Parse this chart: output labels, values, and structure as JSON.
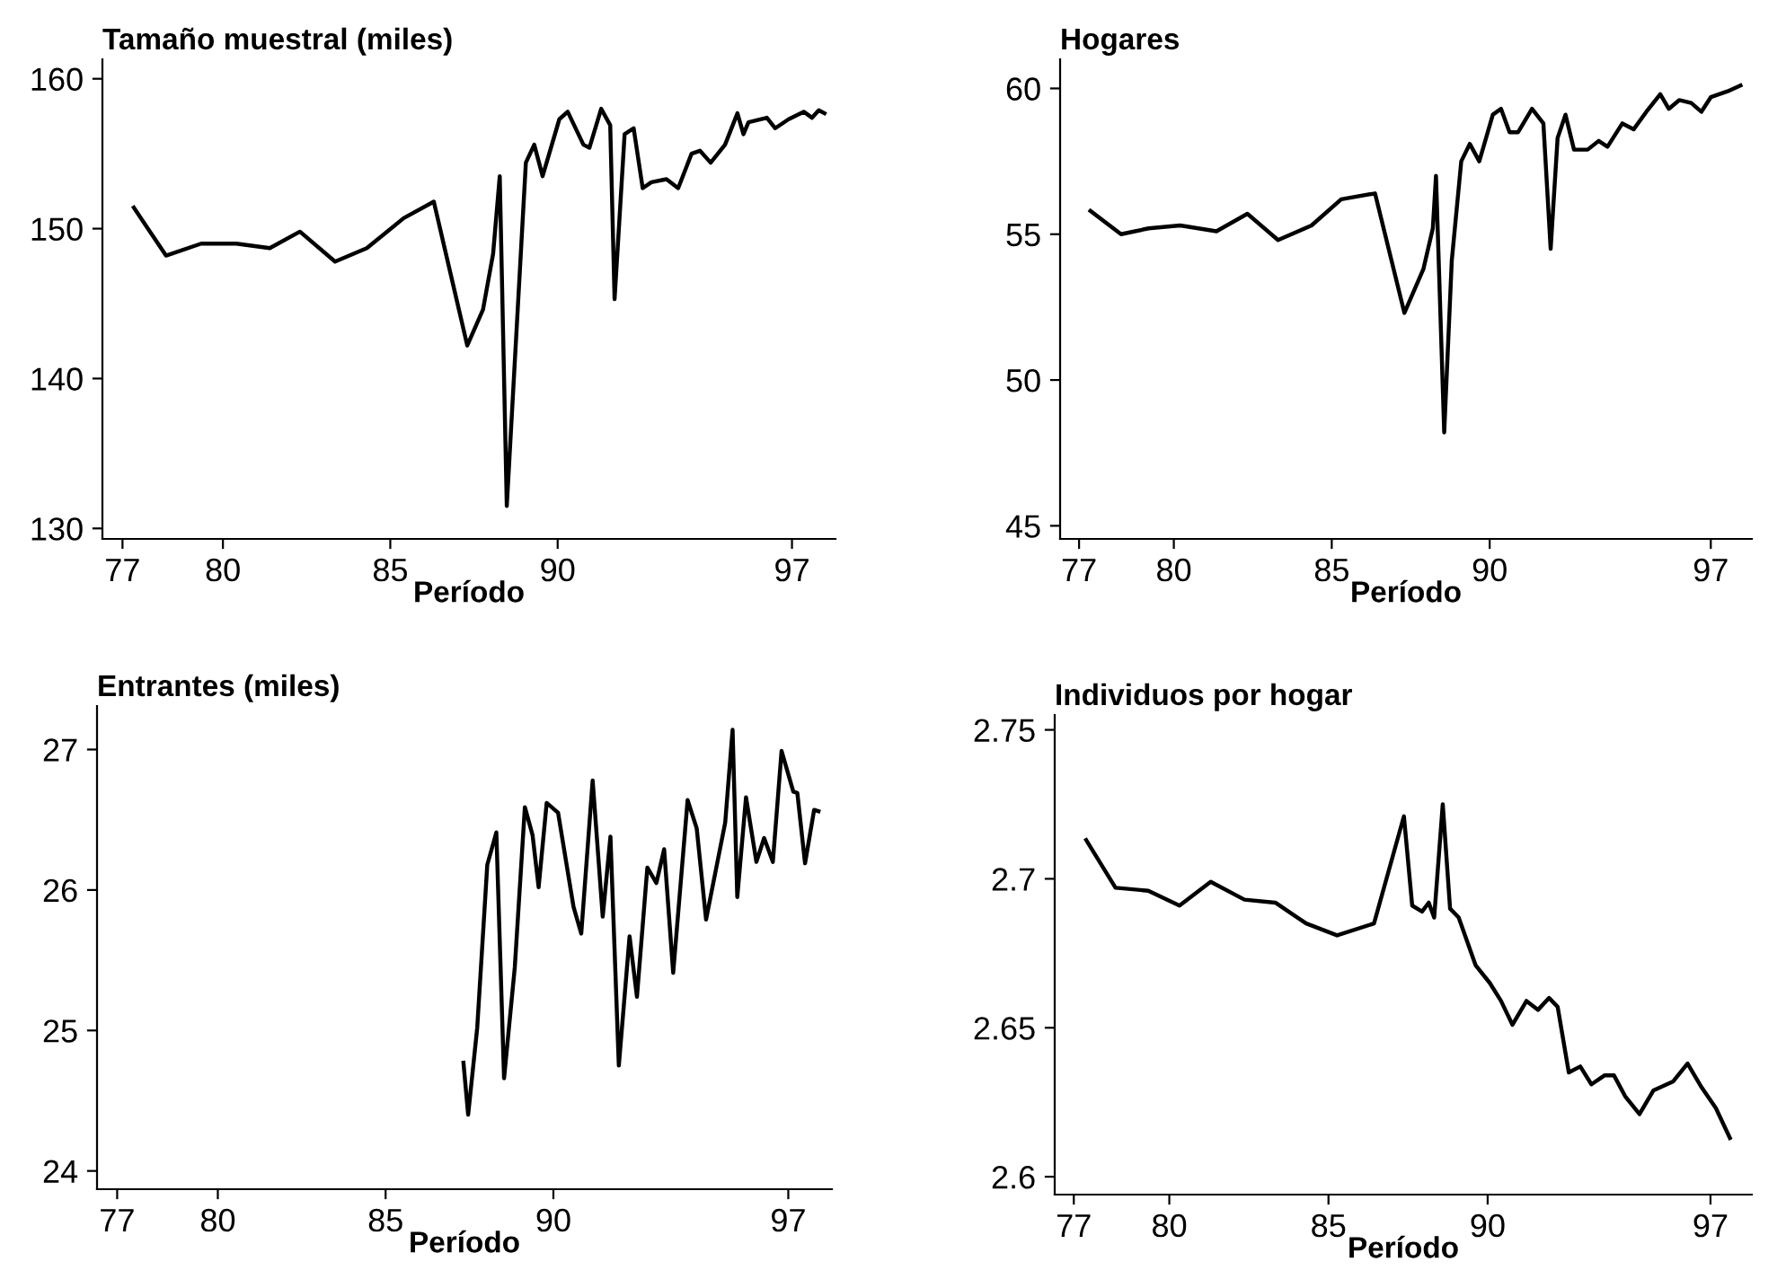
{
  "chart_data": [
    {
      "type": "line",
      "title": "Tamaño muestral (miles)",
      "xlabel": "Período",
      "color": "#000000",
      "xlim": [
        76.4,
        98.3
      ],
      "ylim": [
        129.3,
        161.3
      ],
      "xticks": [
        77,
        80,
        85,
        90,
        97
      ],
      "yticks": [
        130,
        140,
        150,
        160
      ],
      "x": [
        77.34,
        78.3,
        79.35,
        80.4,
        81.4,
        82.3,
        83.35,
        84.3,
        85.4,
        86.3,
        87.3,
        87.77,
        88.07,
        88.27,
        88.48,
        89.05,
        89.3,
        89.55,
        90.05,
        90.3,
        90.77,
        90.95,
        91.3,
        91.57,
        91.7,
        92.0,
        92.27,
        92.54,
        92.8,
        93.25,
        93.6,
        94.0,
        94.25,
        94.57,
        95.0,
        95.37,
        95.55,
        95.7,
        96.25,
        96.5,
        96.9,
        97.35,
        97.6,
        97.8,
        97.97
      ],
      "values": [
        151.4,
        148.2,
        149.0,
        149.0,
        148.7,
        149.8,
        147.8,
        148.7,
        150.7,
        151.8,
        142.2,
        144.6,
        148.3,
        153.5,
        131.5,
        154.4,
        155.6,
        153.5,
        157.3,
        157.8,
        155.6,
        155.4,
        158.0,
        156.9,
        145.3,
        156.3,
        156.7,
        152.7,
        153.1,
        153.3,
        152.7,
        155.0,
        155.2,
        154.4,
        155.6,
        157.7,
        156.3,
        157.1,
        157.4,
        156.7,
        157.3,
        157.8,
        157.4,
        157.9,
        157.7
      ]
    },
    {
      "type": "line",
      "title": "Hogares",
      "xlabel": "Período",
      "color": "#000000",
      "xlim": [
        76.4,
        98.3
      ],
      "ylim": [
        44.55,
        61.0
      ],
      "xticks": [
        77,
        80,
        85,
        90,
        97
      ],
      "yticks": [
        45,
        50,
        55,
        60
      ],
      "x": [
        77.36,
        78.33,
        79.2,
        80.2,
        81.35,
        82.33,
        83.3,
        84.36,
        85.3,
        86.37,
        87.3,
        87.9,
        88.2,
        88.3,
        88.56,
        88.8,
        89.1,
        89.37,
        89.67,
        90.1,
        90.36,
        90.63,
        90.9,
        91.34,
        91.7,
        91.93,
        92.15,
        92.4,
        92.67,
        93.1,
        93.45,
        93.73,
        94.2,
        94.56,
        94.96,
        95.4,
        95.67,
        96.0,
        96.38,
        96.7,
        97.0,
        97.53,
        97.94
      ],
      "values": [
        55.8,
        55.0,
        55.2,
        55.3,
        55.1,
        55.7,
        54.8,
        55.3,
        56.2,
        56.4,
        52.3,
        53.8,
        55.2,
        57.0,
        48.2,
        54.1,
        57.5,
        58.1,
        57.5,
        59.1,
        59.3,
        58.5,
        58.5,
        59.3,
        58.8,
        54.5,
        58.3,
        59.1,
        57.9,
        57.9,
        58.2,
        58.0,
        58.8,
        58.6,
        59.2,
        59.8,
        59.3,
        59.6,
        59.5,
        59.2,
        59.7,
        59.9,
        60.1
      ]
    },
    {
      "type": "line",
      "title": "Entrantes (miles)",
      "xlabel": "Período",
      "color": "#000000",
      "xlim": [
        76.4,
        98.3
      ],
      "ylim": [
        23.87,
        27.31
      ],
      "xticks": [
        77,
        80,
        85,
        90,
        97
      ],
      "yticks": [
        24,
        25,
        26,
        27
      ],
      "x": [
        87.32,
        87.46,
        87.73,
        88.03,
        88.3,
        88.53,
        88.85,
        89.15,
        89.38,
        89.56,
        89.8,
        90.14,
        90.6,
        90.83,
        91.17,
        91.47,
        91.7,
        91.95,
        92.27,
        92.49,
        92.8,
        93.07,
        93.3,
        93.57,
        94.0,
        94.27,
        94.55,
        95.12,
        95.34,
        95.48,
        95.74,
        96.05,
        96.28,
        96.54,
        96.8,
        97.15,
        97.27,
        97.5,
        97.77,
        97.9
      ],
      "values": [
        24.77,
        24.4,
        25.02,
        26.18,
        26.41,
        24.66,
        25.45,
        26.59,
        26.39,
        26.02,
        26.62,
        26.55,
        25.88,
        25.69,
        26.78,
        25.81,
        26.38,
        24.75,
        25.67,
        25.24,
        26.16,
        26.05,
        26.29,
        25.41,
        26.64,
        26.44,
        25.79,
        26.48,
        27.14,
        25.95,
        26.66,
        26.2,
        26.37,
        26.2,
        26.99,
        26.7,
        26.69,
        26.19,
        26.57,
        26.56
      ]
    },
    {
      "type": "line",
      "title": "Individuos por hogar",
      "xlabel": "Período",
      "color": "#000000",
      "xlim": [
        76.4,
        98.3
      ],
      "ylim": [
        2.594,
        2.755
      ],
      "xticks": [
        77,
        80,
        85,
        90,
        97
      ],
      "yticks": [
        2.6,
        2.65,
        2.7,
        2.75
      ],
      "x": [
        77.39,
        78.31,
        79.34,
        80.32,
        81.3,
        82.36,
        83.33,
        84.3,
        85.27,
        86.43,
        87.37,
        87.63,
        87.94,
        88.15,
        88.32,
        88.59,
        88.82,
        89.09,
        89.62,
        90.07,
        90.42,
        90.78,
        91.22,
        91.58,
        91.93,
        92.2,
        92.55,
        92.91,
        93.26,
        93.67,
        93.97,
        94.32,
        94.77,
        95.21,
        95.83,
        96.28,
        96.72,
        97.17,
        97.61
      ],
      "values": [
        2.713,
        2.697,
        2.696,
        2.691,
        2.699,
        2.693,
        2.692,
        2.685,
        2.681,
        2.685,
        2.721,
        2.691,
        2.689,
        2.692,
        2.687,
        2.725,
        2.69,
        2.687,
        2.671,
        2.665,
        2.659,
        2.651,
        2.659,
        2.656,
        2.66,
        2.657,
        2.635,
        2.637,
        2.631,
        2.634,
        2.634,
        2.627,
        2.621,
        2.629,
        2.632,
        2.638,
        2.63,
        2.623,
        2.613
      ]
    }
  ]
}
